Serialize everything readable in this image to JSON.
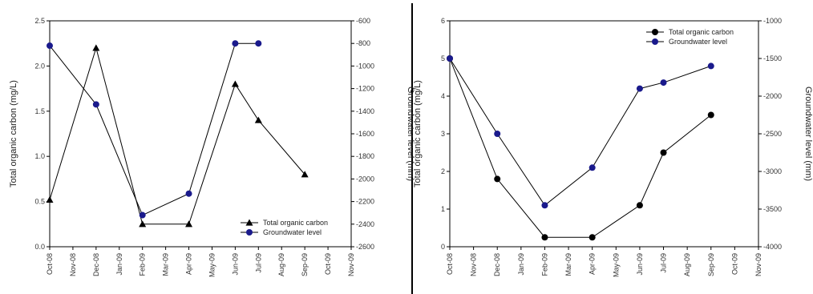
{
  "chart_data": [
    {
      "type": "line",
      "x": [
        "Oct-08",
        "Nov-08",
        "Dec-08",
        "Jan-09",
        "Feb-09",
        "Mar-09",
        "Apr-09",
        "May-09",
        "Jun-09",
        "Jul-09",
        "Aug-09",
        "Sep-09",
        "Oct-09",
        "Nov-09"
      ],
      "ylabel": "Total organic carbon (mg/L)",
      "y2label": "Groundwater level (mm)",
      "ylim": [
        0,
        2.5
      ],
      "y2lim": [
        -2600,
        -600
      ],
      "yticks": [
        "0.0",
        "0.5",
        "1.0",
        "1.5",
        "2.0",
        "2.5"
      ],
      "y2ticks": [
        "-600",
        "-800",
        "-1000",
        "-1200",
        "-1400",
        "-1600",
        "-1800",
        "-2000",
        "-2200",
        "-2400",
        "-2600"
      ],
      "grid": false,
      "legend_position": "bottom-right",
      "series": [
        {
          "name": "Total organic carbon",
          "axis": "left",
          "marker": "triangle",
          "color": "#000000",
          "points": [
            [
              "Oct-08",
              0.52
            ],
            [
              "Dec-08",
              2.2
            ],
            [
              "Feb-09",
              0.25
            ],
            [
              "Apr-09",
              0.25
            ],
            [
              "Jun-09",
              1.8
            ],
            [
              "Jul-09",
              1.4
            ],
            [
              "Sep-09",
              0.8
            ]
          ]
        },
        {
          "name": "Groundwater level",
          "axis": "right",
          "marker": "circle",
          "color": "#1a1a8c",
          "points": [
            [
              "Oct-08",
              -820
            ],
            [
              "Dec-08",
              -1340
            ],
            [
              "Feb-09",
              -2320
            ],
            [
              "Apr-09",
              -2130
            ],
            [
              "Jun-09",
              -800
            ],
            [
              "Jul-09",
              -800
            ]
          ]
        }
      ]
    },
    {
      "type": "line",
      "x": [
        "Oct-08",
        "Nov-08",
        "Dec-08",
        "Jan-09",
        "Feb-09",
        "Mar-09",
        "Apr-09",
        "May-09",
        "Jun-09",
        "Jul-09",
        "Aug-09",
        "Sep-09",
        "Oct-09",
        "Nov-09"
      ],
      "ylabel": "Total organic carbon (mg/L)",
      "y2label": "Groundwater level (mm)",
      "ylim": [
        0,
        6
      ],
      "y2lim": [
        -4000,
        -1000
      ],
      "yticks": [
        "0",
        "1",
        "2",
        "3",
        "4",
        "5",
        "6"
      ],
      "y2ticks": [
        "-1000",
        "-1500",
        "-2000",
        "-2500",
        "-3000",
        "-3500",
        "-4000"
      ],
      "grid": false,
      "legend_position": "top-right",
      "series": [
        {
          "name": "Total organic carbon",
          "axis": "left",
          "marker": "circle",
          "color": "#000000",
          "points": [
            [
              "Oct-08",
              5.0
            ],
            [
              "Dec-08",
              1.8
            ],
            [
              "Feb-09",
              0.25
            ],
            [
              "Apr-09",
              0.25
            ],
            [
              "Jun-09",
              1.1
            ],
            [
              "Jul-09",
              2.5
            ],
            [
              "Sep-09",
              3.5
            ]
          ]
        },
        {
          "name": "Groundwater level",
          "axis": "right",
          "marker": "circle",
          "color": "#1a1a8c",
          "points": [
            [
              "Oct-08",
              -1500
            ],
            [
              "Dec-08",
              -2500
            ],
            [
              "Feb-09",
              -3450
            ],
            [
              "Apr-09",
              -2950
            ],
            [
              "Jun-09",
              -1900
            ],
            [
              "Jul-09",
              -1820
            ],
            [
              "Sep-09",
              -1600
            ]
          ]
        }
      ]
    }
  ]
}
